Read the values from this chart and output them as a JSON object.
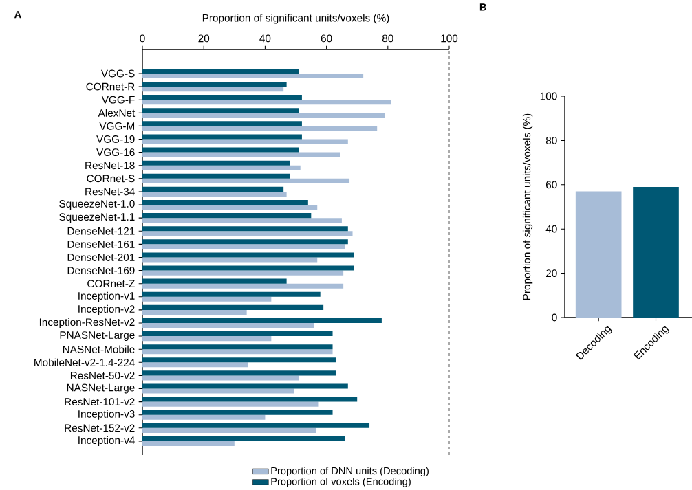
{
  "chart_data": [
    {
      "type": "bar",
      "orientation": "horizontal",
      "title": "A",
      "xlabel": "Proportion of significant units/voxels (%)",
      "categories": [
        "VGG-S",
        "CORnet-R",
        "VGG-F",
        "AlexNet",
        "VGG-M",
        "VGG-19",
        "VGG-16",
        "ResNet-18",
        "CORnet-S",
        "ResNet-34",
        "SqueezeNet-1.0",
        "SqueezeNet-1.1",
        "DenseNet-121",
        "DenseNet-161",
        "DenseNet-201",
        "DenseNet-169",
        "CORnet-Z",
        "Inception-v1",
        "Inception-v2",
        "Inception-ResNet-v2",
        "PNASNet-Large",
        "NASNet-Mobile",
        "MobileNet-v2-1.4-224",
        "ResNet-50-v2",
        "NASNet-Large",
        "ResNet-101-v2",
        "Inception-v3",
        "ResNet-152-v2",
        "Inception-v4"
      ],
      "series": [
        {
          "name": "Proportion of DNN units (Decoding)",
          "color": "#a7bcd7",
          "values": [
            72,
            46,
            81,
            79,
            76.5,
            67,
            64.5,
            51.5,
            67.5,
            47,
            57,
            65,
            68.5,
            66,
            57,
            65.5,
            65.5,
            42,
            34,
            56,
            42,
            62,
            34.5,
            51,
            49.5,
            57.5,
            40,
            56.5,
            30
          ]
        },
        {
          "name": "Proportion of voxels (Encoding)",
          "color": "#005874",
          "values": [
            51,
            47,
            52,
            51,
            52,
            52,
            51,
            48,
            48,
            46,
            54,
            55,
            67,
            67,
            69,
            69,
            47,
            58,
            59,
            78,
            62,
            62,
            63,
            63,
            67,
            70,
            62,
            74,
            66
          ]
        }
      ],
      "xlim": [
        0,
        100
      ],
      "xticks": [
        0,
        20,
        40,
        60,
        80,
        100
      ],
      "legend": "bottom",
      "ref_lines": [
        {
          "axis": "x",
          "value": 100,
          "line_style": "dashed",
          "color": "#808080"
        }
      ]
    },
    {
      "type": "bar",
      "title": "B",
      "ylabel": "Proportion of significant units/voxels (%)",
      "categories": [
        "Decoding",
        "Encoding"
      ],
      "values": [
        57,
        59
      ],
      "colors": [
        "#a7bcd7",
        "#005874"
      ],
      "ylim": [
        0,
        100
      ],
      "yticks": [
        0,
        20,
        40,
        60,
        80,
        100
      ]
    }
  ]
}
